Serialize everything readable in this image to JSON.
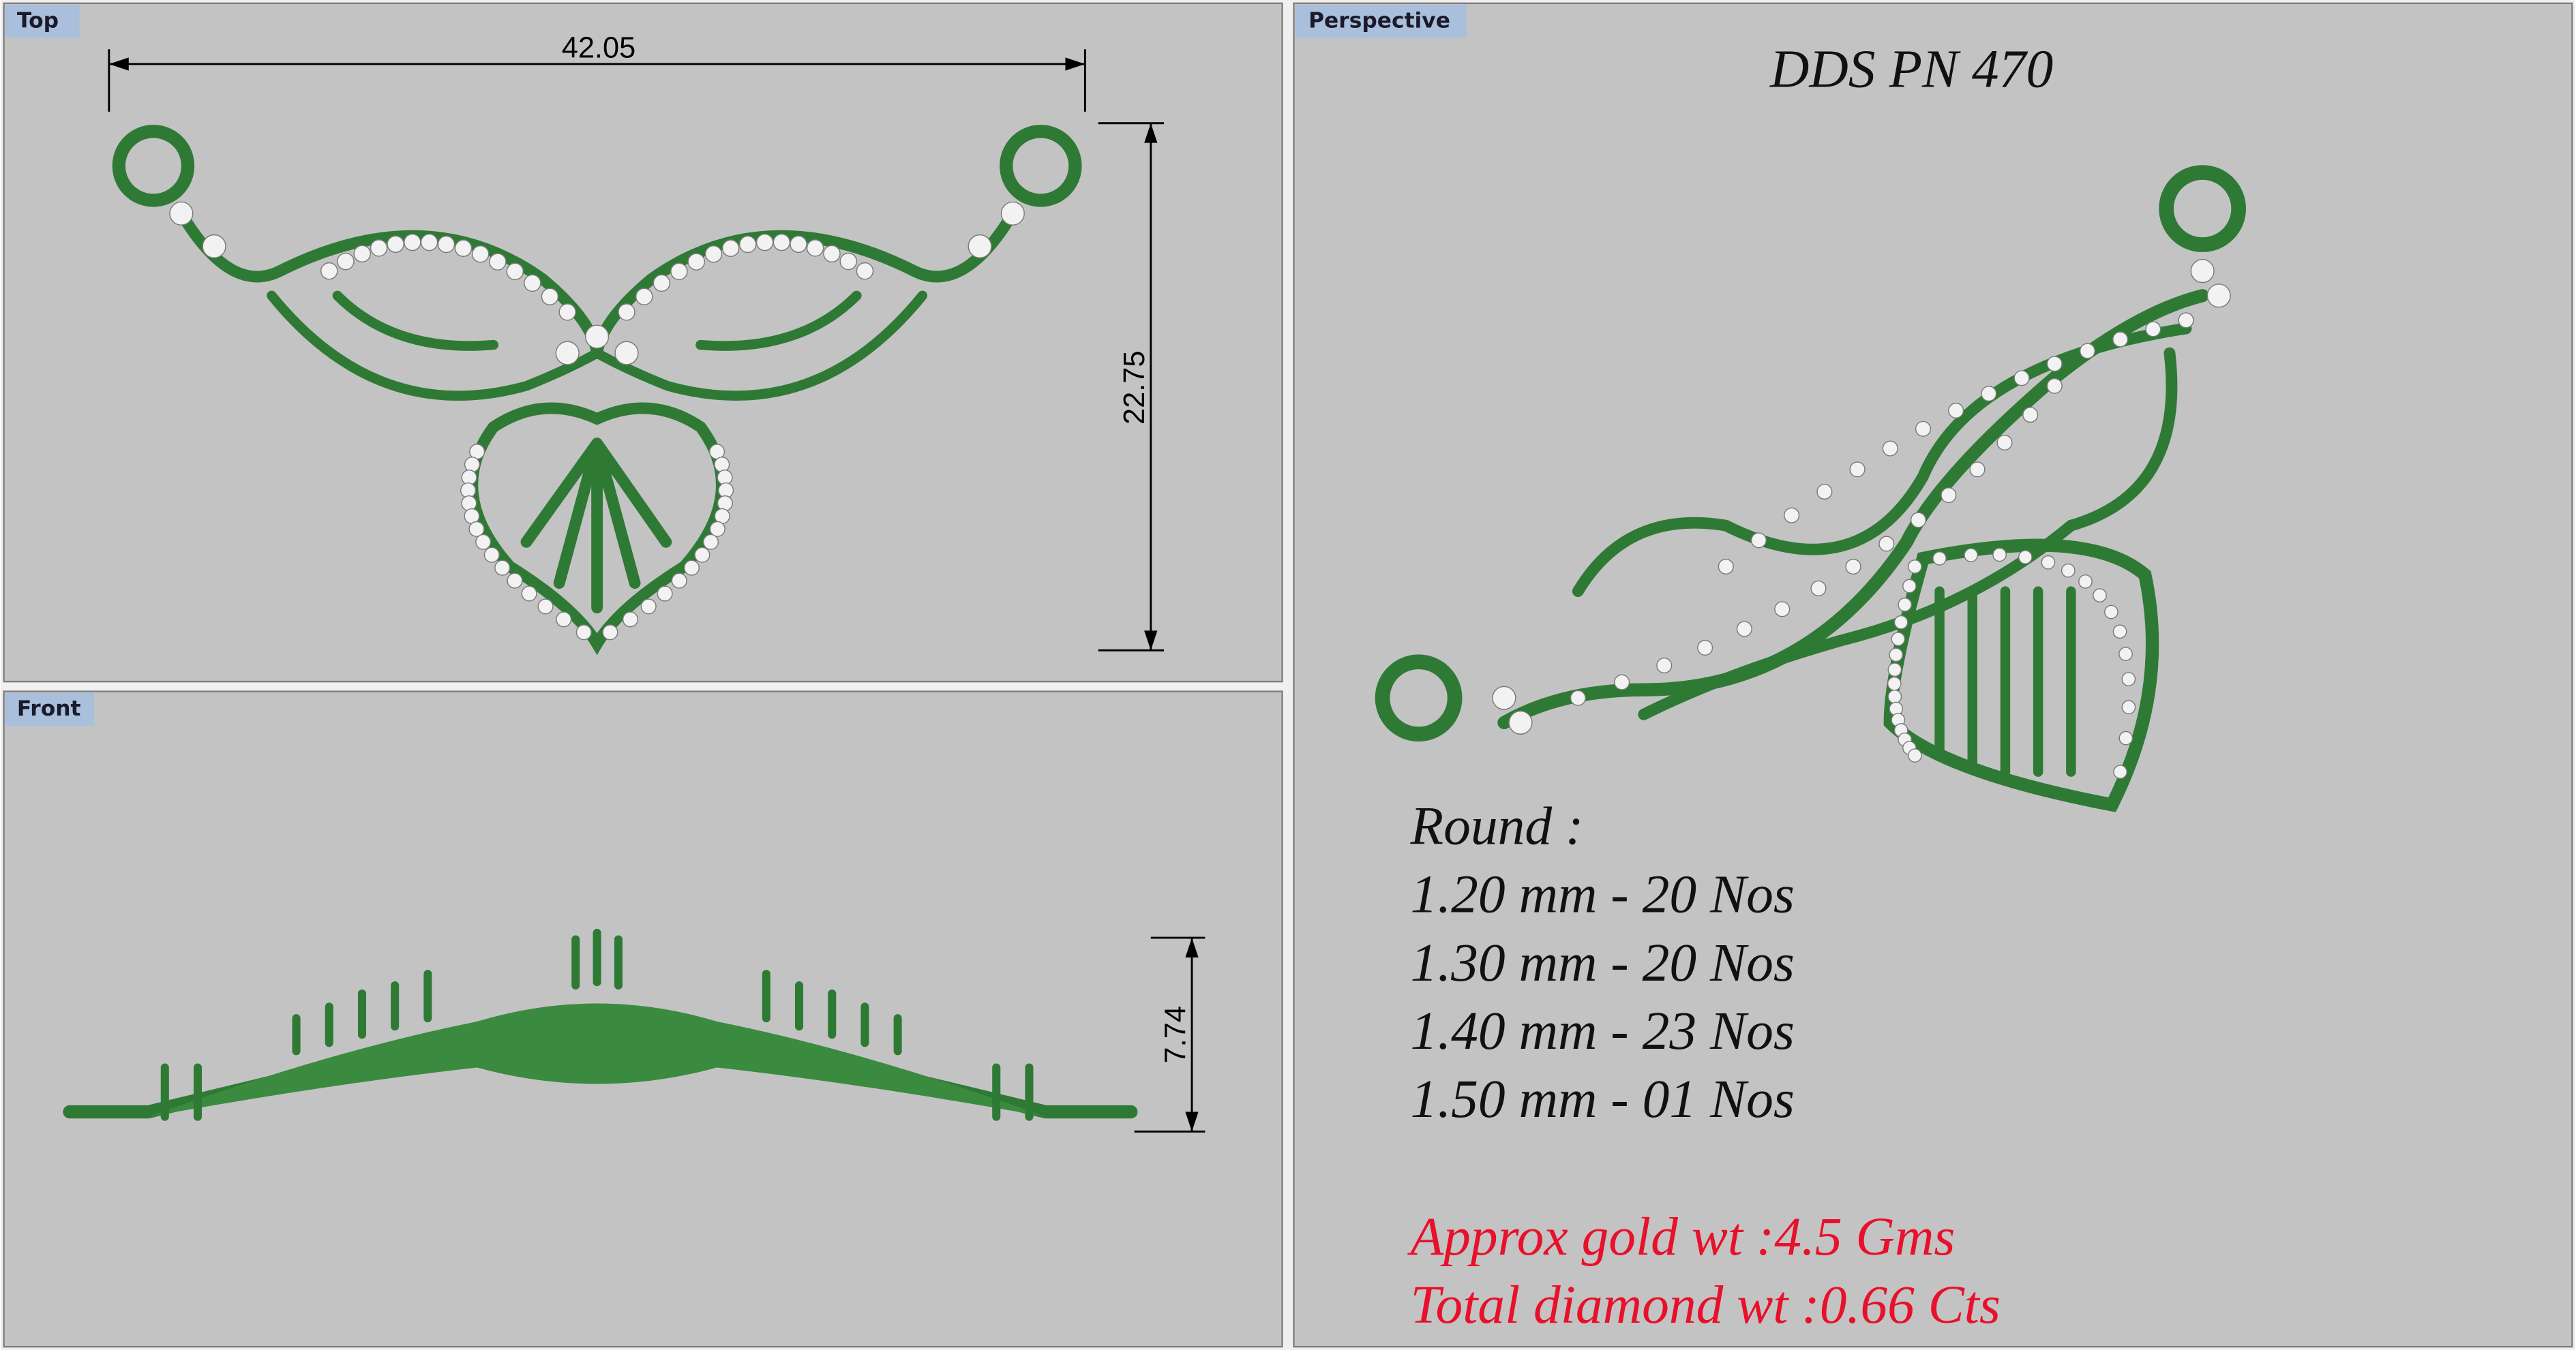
{
  "top": {
    "label": "Top",
    "width_dimension": "42.05",
    "height_dimension": "22.75"
  },
  "front": {
    "label": "Front",
    "height_dimension": "7.74"
  },
  "perspective": {
    "label": "Perspective",
    "title": "DDS PN 470",
    "specs": [
      "Round :",
      "1.20 mm - 20 Nos",
      "1.30 mm - 20 Nos",
      "1.40 mm - 23 Nos",
      "1.50 mm - 01 Nos"
    ],
    "weights": [
      "Approx gold wt :4.5 Gms",
      "Total diamond wt :0.66 Cts"
    ]
  }
}
